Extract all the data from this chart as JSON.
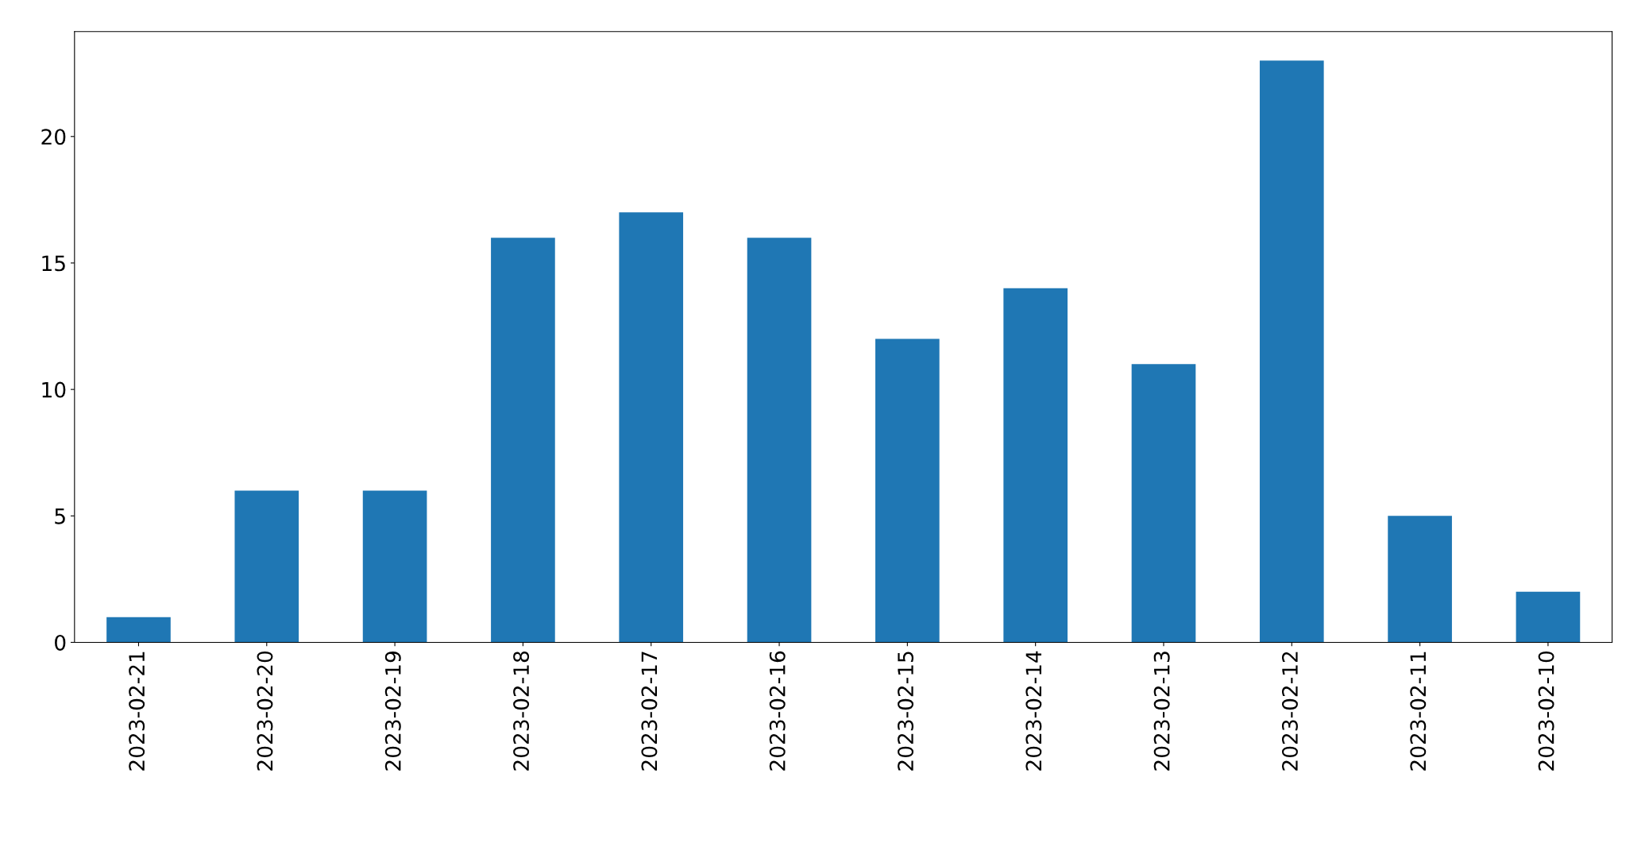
{
  "chart_data": {
    "type": "bar",
    "categories": [
      "2023-02-21",
      "2023-02-20",
      "2023-02-19",
      "2023-02-18",
      "2023-02-17",
      "2023-02-16",
      "2023-02-15",
      "2023-02-14",
      "2023-02-13",
      "2023-02-12",
      "2023-02-11",
      "2023-02-10"
    ],
    "values": [
      1,
      6,
      6,
      16,
      17,
      16,
      12,
      14,
      11,
      23,
      5,
      2
    ],
    "color": "#1f77b4",
    "ylim": [
      0,
      24.15
    ],
    "yticks": [
      0,
      5,
      10,
      15,
      20
    ],
    "grid": false,
    "legend": false
  }
}
